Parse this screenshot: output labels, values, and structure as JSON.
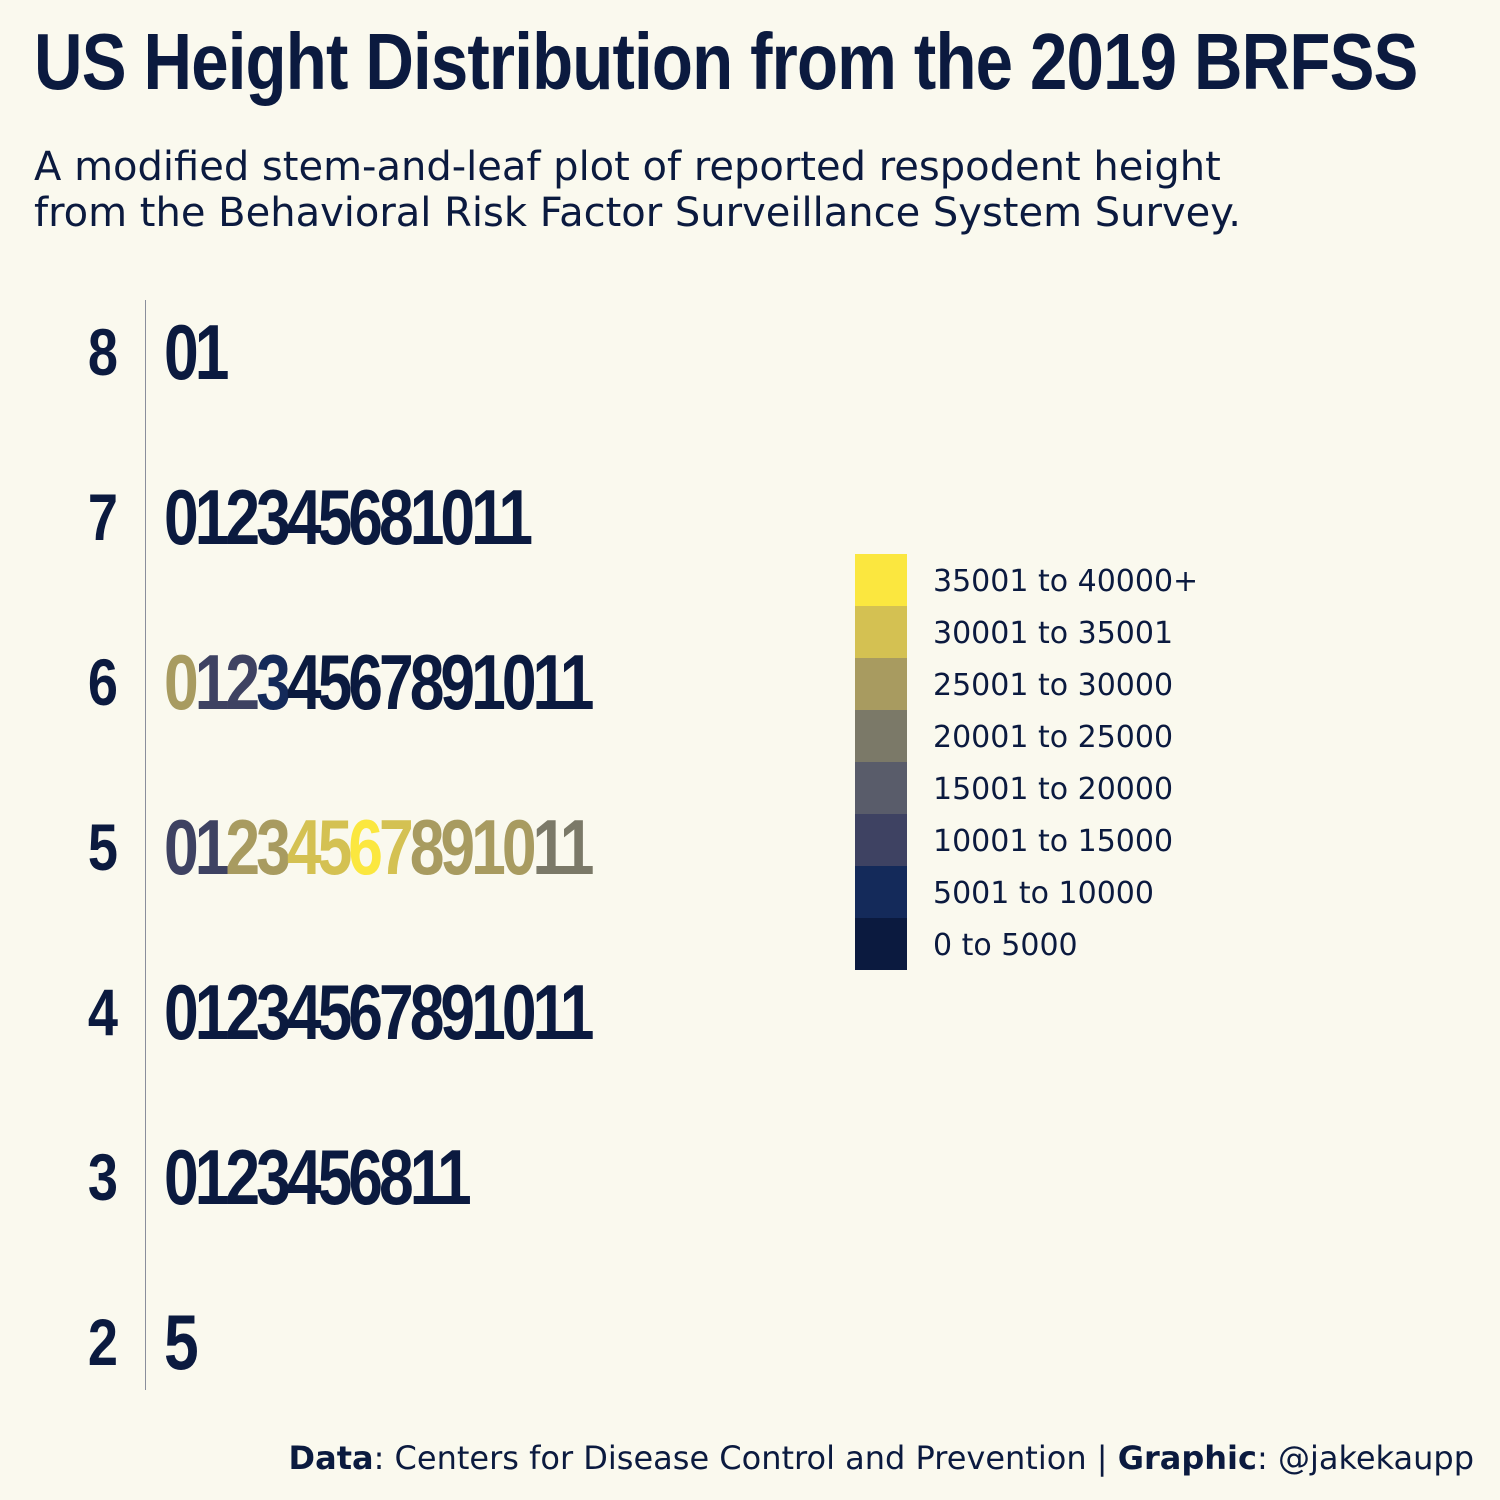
{
  "title": "US Height Distribution from the 2019 BRFSS",
  "subtitle_lines": [
    "A modified stem-and-leaf plot of reported respodent height",
    "from the Behavioral Risk Factor Surveillance System Survey."
  ],
  "caption": {
    "data_label": "Data",
    "data_text": ": Centers for Disease Control and Prevention | ",
    "graphic_label": "Graphic",
    "graphic_text": ": @jakekaupp"
  },
  "colors": {
    "background": "#faf9ee",
    "text": "#0b1a3f",
    "bins": [
      "#0b1a3f",
      "#142a5a",
      "#3e4262",
      "#595c6a",
      "#7b7968",
      "#a89b60",
      "#d4c152",
      "#fbe73f"
    ]
  },
  "chart_data": {
    "type": "table",
    "kind": "stem-and-leaf",
    "stem_unit": "feet",
    "leaf_unit": "inches",
    "rows": [
      {
        "stem": "8",
        "leaves": [
          {
            "digit": "0",
            "bin": 0
          },
          {
            "digit": "1",
            "bin": 0
          }
        ]
      },
      {
        "stem": "7",
        "leaves": [
          {
            "digit": "0",
            "bin": 0
          },
          {
            "digit": "1",
            "bin": 0
          },
          {
            "digit": "2",
            "bin": 0
          },
          {
            "digit": "3",
            "bin": 0
          },
          {
            "digit": "4",
            "bin": 0
          },
          {
            "digit": "5",
            "bin": 0
          },
          {
            "digit": "6",
            "bin": 0
          },
          {
            "digit": "8",
            "bin": 0
          },
          {
            "digit": "10",
            "bin": 0
          },
          {
            "digit": "11",
            "bin": 0
          }
        ]
      },
      {
        "stem": "6",
        "leaves": [
          {
            "digit": "0",
            "bin": 5
          },
          {
            "digit": "1",
            "bin": 2
          },
          {
            "digit": "2",
            "bin": 2
          },
          {
            "digit": "3",
            "bin": 1
          },
          {
            "digit": "4",
            "bin": 0
          },
          {
            "digit": "5",
            "bin": 0
          },
          {
            "digit": "6",
            "bin": 0
          },
          {
            "digit": "7",
            "bin": 0
          },
          {
            "digit": "8",
            "bin": 0
          },
          {
            "digit": "9",
            "bin": 0
          },
          {
            "digit": "10",
            "bin": 0
          },
          {
            "digit": "11",
            "bin": 0
          }
        ]
      },
      {
        "stem": "5",
        "leaves": [
          {
            "digit": "0",
            "bin": 2
          },
          {
            "digit": "1",
            "bin": 2
          },
          {
            "digit": "2",
            "bin": 5
          },
          {
            "digit": "3",
            "bin": 5
          },
          {
            "digit": "4",
            "bin": 6
          },
          {
            "digit": "5",
            "bin": 6
          },
          {
            "digit": "6",
            "bin": 7
          },
          {
            "digit": "7",
            "bin": 6
          },
          {
            "digit": "8",
            "bin": 5
          },
          {
            "digit": "9",
            "bin": 5
          },
          {
            "digit": "10",
            "bin": 5
          },
          {
            "digit": "11",
            "bin": 4
          }
        ]
      },
      {
        "stem": "4",
        "leaves": [
          {
            "digit": "0",
            "bin": 0
          },
          {
            "digit": "1",
            "bin": 0
          },
          {
            "digit": "2",
            "bin": 0
          },
          {
            "digit": "3",
            "bin": 0
          },
          {
            "digit": "4",
            "bin": 0
          },
          {
            "digit": "5",
            "bin": 0
          },
          {
            "digit": "6",
            "bin": 0
          },
          {
            "digit": "7",
            "bin": 0
          },
          {
            "digit": "8",
            "bin": 0
          },
          {
            "digit": "9",
            "bin": 0
          },
          {
            "digit": "10",
            "bin": 0
          },
          {
            "digit": "11",
            "bin": 0
          }
        ]
      },
      {
        "stem": "3",
        "leaves": [
          {
            "digit": "0",
            "bin": 0
          },
          {
            "digit": "1",
            "bin": 0
          },
          {
            "digit": "2",
            "bin": 0
          },
          {
            "digit": "3",
            "bin": 0
          },
          {
            "digit": "4",
            "bin": 0
          },
          {
            "digit": "5",
            "bin": 0
          },
          {
            "digit": "6",
            "bin": 0
          },
          {
            "digit": "8",
            "bin": 0
          },
          {
            "digit": "11",
            "bin": 0
          }
        ]
      },
      {
        "stem": "2",
        "leaves": [
          {
            "digit": "5",
            "bin": 0
          }
        ]
      }
    ],
    "legend": {
      "placement": "right",
      "entries": [
        {
          "label": "35001 to 40000+",
          "bin": 7
        },
        {
          "label": "30001 to 35001",
          "bin": 6
        },
        {
          "label": "25001 to 30000",
          "bin": 5
        },
        {
          "label": "20001 to 25000",
          "bin": 4
        },
        {
          "label": "15001 to 20000",
          "bin": 3
        },
        {
          "label": "10001 to 15000",
          "bin": 2
        },
        {
          "label": "5001 to 10000",
          "bin": 1
        },
        {
          "label": "0 to 5000",
          "bin": 0
        }
      ]
    }
  }
}
